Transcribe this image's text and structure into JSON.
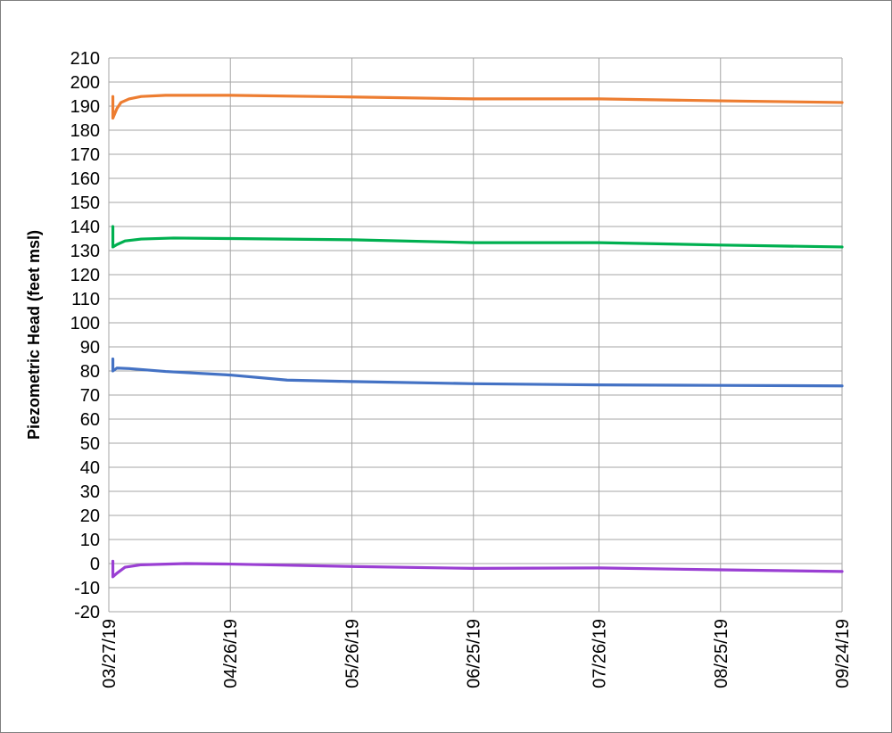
{
  "chart_data": {
    "type": "line",
    "title": "",
    "xlabel": "",
    "ylabel": "Piezometric Head (feet  msl)",
    "x_tick_labels": [
      "03/27/19",
      "04/26/19",
      "05/26/19",
      "06/25/19",
      "07/26/19",
      "08/25/19",
      "09/24/19"
    ],
    "x_ticks": [
      "2019-03-27",
      "2019-04-26",
      "2019-05-26",
      "2019-06-25",
      "2019-07-26",
      "2019-08-25",
      "2019-09-24"
    ],
    "xlim": [
      "2019-03-27",
      "2019-09-24"
    ],
    "ylim": [
      -20,
      210
    ],
    "y_ticks": [
      -20,
      -10,
      0,
      10,
      20,
      30,
      40,
      50,
      60,
      70,
      80,
      90,
      100,
      110,
      120,
      130,
      140,
      150,
      160,
      170,
      180,
      190,
      200,
      210
    ],
    "grid": true,
    "legend": "none",
    "series": [
      {
        "color": "#ED7D31",
        "points": [
          [
            "2019-03-28",
            194
          ],
          [
            "2019-03-28",
            185
          ],
          [
            "2019-03-29",
            189
          ],
          [
            "2019-03-30",
            191.5
          ],
          [
            "2019-04-01",
            193
          ],
          [
            "2019-04-04",
            194
          ],
          [
            "2019-04-10",
            194.5
          ],
          [
            "2019-04-26",
            194.5
          ],
          [
            "2019-05-26",
            193.8
          ],
          [
            "2019-06-25",
            193
          ],
          [
            "2019-07-26",
            193
          ],
          [
            "2019-08-25",
            192.2
          ],
          [
            "2019-09-24",
            191.5
          ]
        ]
      },
      {
        "color": "#00B050",
        "points": [
          [
            "2019-03-28",
            140
          ],
          [
            "2019-03-28",
            131.5
          ],
          [
            "2019-03-29",
            132.5
          ],
          [
            "2019-03-31",
            134
          ],
          [
            "2019-04-04",
            134.8
          ],
          [
            "2019-04-12",
            135.2
          ],
          [
            "2019-04-26",
            135
          ],
          [
            "2019-05-26",
            134.5
          ],
          [
            "2019-06-25",
            133.3
          ],
          [
            "2019-07-26",
            133.3
          ],
          [
            "2019-08-25",
            132.3
          ],
          [
            "2019-09-24",
            131.5
          ]
        ]
      },
      {
        "color": "#4472C4",
        "points": [
          [
            "2019-03-28",
            85
          ],
          [
            "2019-03-28",
            80
          ],
          [
            "2019-03-29",
            81.2
          ],
          [
            "2019-04-01",
            81
          ],
          [
            "2019-04-10",
            79.8
          ],
          [
            "2019-04-26",
            78.3
          ],
          [
            "2019-05-10",
            76.2
          ],
          [
            "2019-05-26",
            75.6
          ],
          [
            "2019-06-25",
            74.7
          ],
          [
            "2019-07-26",
            74.2
          ],
          [
            "2019-08-25",
            74
          ],
          [
            "2019-09-24",
            73.8
          ]
        ]
      },
      {
        "color": "#9A3FD3",
        "points": [
          [
            "2019-03-28",
            1
          ],
          [
            "2019-03-28",
            -5.5
          ],
          [
            "2019-03-29",
            -4
          ],
          [
            "2019-03-31",
            -1.5
          ],
          [
            "2019-04-04",
            -0.5
          ],
          [
            "2019-04-15",
            0
          ],
          [
            "2019-04-26",
            -0.2
          ],
          [
            "2019-05-26",
            -1.2
          ],
          [
            "2019-06-25",
            -2
          ],
          [
            "2019-07-26",
            -1.8
          ],
          [
            "2019-08-25",
            -2.6
          ],
          [
            "2019-09-24",
            -3.3
          ]
        ]
      }
    ]
  }
}
